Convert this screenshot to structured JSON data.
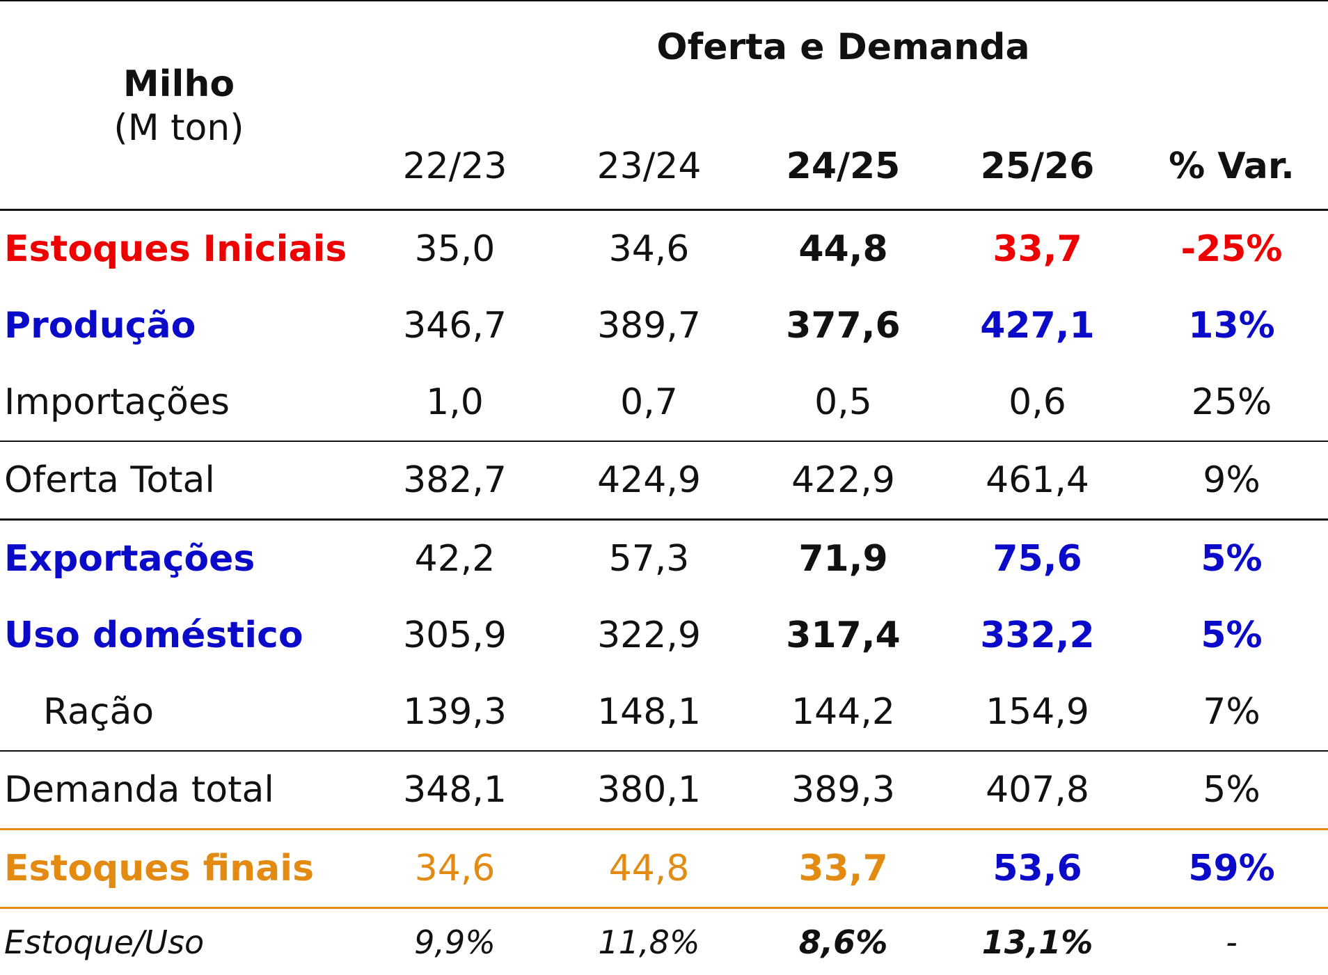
{
  "header": {
    "commodity": "Milho",
    "unit": "(M ton)",
    "title": "Oferta e Demanda",
    "columns": [
      "22/23",
      "23/24",
      "24/25",
      "25/26",
      "% Var."
    ]
  },
  "rows": [
    {
      "label": "Estoques Iniciais",
      "values": [
        "35,0",
        "34,6",
        "44,8",
        "33,7",
        "-25%"
      ]
    },
    {
      "label": "Produção",
      "values": [
        "346,7",
        "389,7",
        "377,6",
        "427,1",
        "13%"
      ]
    },
    {
      "label": "Importações",
      "values": [
        "1,0",
        "0,7",
        "0,5",
        "0,6",
        "25%"
      ]
    },
    {
      "label": "Oferta Total",
      "values": [
        "382,7",
        "424,9",
        "422,9",
        "461,4",
        "9%"
      ]
    },
    {
      "label": "Exportações",
      "values": [
        "42,2",
        "57,3",
        "71,9",
        "75,6",
        "5%"
      ]
    },
    {
      "label": "Uso doméstico",
      "values": [
        "305,9",
        "322,9",
        "317,4",
        "332,2",
        "5%"
      ]
    },
    {
      "label": "Ração",
      "values": [
        "139,3",
        "148,1",
        "144,2",
        "154,9",
        "7%"
      ]
    },
    {
      "label": "Demanda total",
      "values": [
        "348,1",
        "380,1",
        "389,3",
        "407,8",
        "5%"
      ]
    },
    {
      "label": "Estoques finais",
      "values": [
        "34,6",
        "44,8",
        "33,7",
        "53,6",
        "59%"
      ]
    },
    {
      "label": "Estoque/Uso",
      "values": [
        "9,9%",
        "11,8%",
        "8,6%",
        "13,1%",
        "-"
      ]
    }
  ],
  "colors": {
    "red": "#ee0000",
    "blue": "#0a0ac8",
    "orange": "#e28a12",
    "black": "#111111"
  }
}
